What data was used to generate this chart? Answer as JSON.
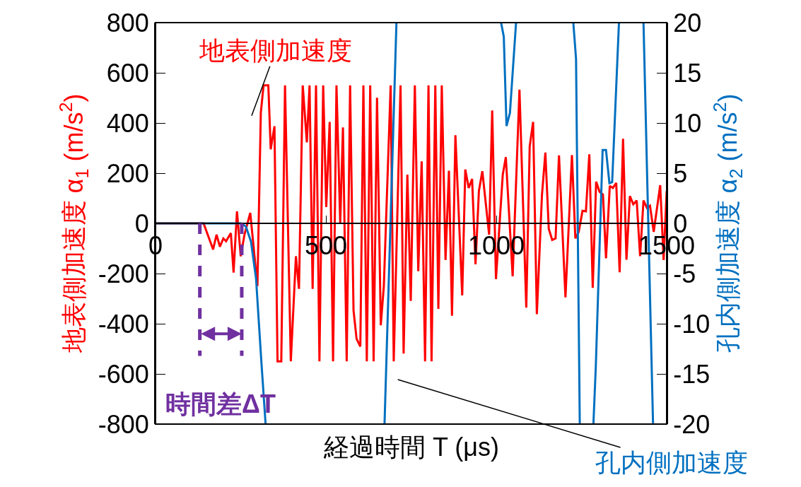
{
  "chart_data": {
    "type": "line",
    "xlabel": "経過時間 T (μs)",
    "ylabel": "地表側加速度 α$_{1}$ (m/s$^{2}$)",
    "y2label": "孔内側加速度 α$_{2}$ (m/s$^{2}$)",
    "xlim": [
      0,
      1500
    ],
    "xticks": [
      0,
      500,
      1000,
      1500
    ],
    "ylim": [
      -800,
      800
    ],
    "yticks": [
      -800,
      -600,
      -400,
      -200,
      0,
      200,
      400,
      600,
      800
    ],
    "y2lim": [
      -20,
      20
    ],
    "y2ticks": [
      -20,
      -15,
      -10,
      -5,
      0,
      5,
      10,
      15,
      20
    ],
    "line_style": "solid",
    "marker": "none",
    "series": [
      {
        "color": "#ff0000",
        "x": [
          0,
          141,
          169,
          179,
          189,
          199,
          207,
          221,
          229,
          239,
          250,
          261,
          278,
          299,
          309,
          317,
          331,
          338,
          349,
          358,
          369,
          380,
          397,
          412,
          421,
          432,
          444,
          452,
          461,
          471,
          481,
          492,
          501,
          511,
          521,
          531,
          542,
          550,
          561,
          571,
          581,
          590,
          601,
          610,
          620,
          630,
          640,
          650,
          661,
          670,
          690,
          699,
          719,
          728,
          739,
          749,
          761,
          771,
          781,
          791,
          801,
          810,
          821,
          830,
          840,
          851,
          861,
          870,
          880,
          900,
          909,
          919,
          929,
          939,
          949,
          959,
          979,
          988,
          999,
          1019,
          1028,
          1048,
          1068,
          1088,
          1098,
          1108,
          1119,
          1134,
          1144,
          1154,
          1164,
          1174,
          1184,
          1203,
          1222,
          1232,
          1242,
          1253,
          1263,
          1273,
          1283,
          1293,
          1303,
          1313,
          1322,
          1333,
          1342,
          1352,
          1362,
          1372,
          1382,
          1392,
          1402,
          1412,
          1422,
          1432,
          1442,
          1451,
          1462,
          1481,
          1491,
          1500
        ],
        "values": [
          0,
          0,
          -104,
          -45,
          -93,
          -60,
          -71,
          -39,
          -196,
          48,
          -131,
          -45,
          42,
          -250,
          441,
          550,
          550,
          295,
          387,
          -550,
          -550,
          550,
          -550,
          -131,
          -261,
          550,
          323,
          550,
          -261,
          550,
          -550,
          550,
          65,
          404,
          -550,
          550,
          0,
          382,
          -550,
          550,
          -346,
          -460,
          -491,
          550,
          -550,
          550,
          -550,
          501,
          -406,
          -250,
          550,
          -550,
          550,
          -519,
          194,
          -309,
          550,
          -191,
          247,
          -550,
          550,
          -550,
          550,
          -341,
          550,
          -146,
          210,
          -368,
          351,
          -287,
          215,
          141,
          177,
          -163,
          129,
          208,
          -45,
          450,
          -222,
          194,
          264,
          -211,
          533,
          -336,
          306,
          404,
          -362,
          112,
          282,
          -22,
          -66,
          -60,
          271,
          -295,
          272,
          -60,
          -34,
          50,
          48,
          275,
          -257,
          166,
          126,
          115,
          -139,
          149,
          141,
          161,
          -195,
          337,
          -145,
          109,
          76,
          91,
          -131,
          91,
          62,
          70,
          -34,
          152,
          -146,
          129
        ]
      },
      {
        "color": "#0070c0",
        "axis": "y2",
        "x": [
          0,
          250,
          265,
          280,
          295,
          310,
          323,
          500,
          672,
          707,
          850,
          1014,
          1022,
          1030,
          1040,
          1058,
          1150,
          1226,
          1234,
          1245,
          1265,
          1285,
          1292,
          1312,
          1322,
          1332,
          1340,
          1360,
          1400,
          1432,
          1460
        ],
        "values": [
          0,
          0,
          -0.3,
          -1.8,
          -5.5,
          -13.5,
          -20,
          null,
          -20,
          20,
          null,
          20,
          18.6,
          9.7,
          11.0,
          20,
          null,
          20,
          16.4,
          -20,
          null,
          -20,
          -14.3,
          7.3,
          7.3,
          4.0,
          4.1,
          20,
          null,
          20,
          -20
        ]
      }
    ],
    "ref_lines": [
      {
        "axis": "x",
        "value": 130,
        "label": "時間差ΔT",
        "color": "#7030a0",
        "line_style": "dashed"
      },
      {
        "axis": "x",
        "value": 253,
        "color": "#7030a0",
        "line_style": "dashed"
      }
    ],
    "annotations": [
      "地表側加速度",
      "孔内側加速度"
    ]
  }
}
